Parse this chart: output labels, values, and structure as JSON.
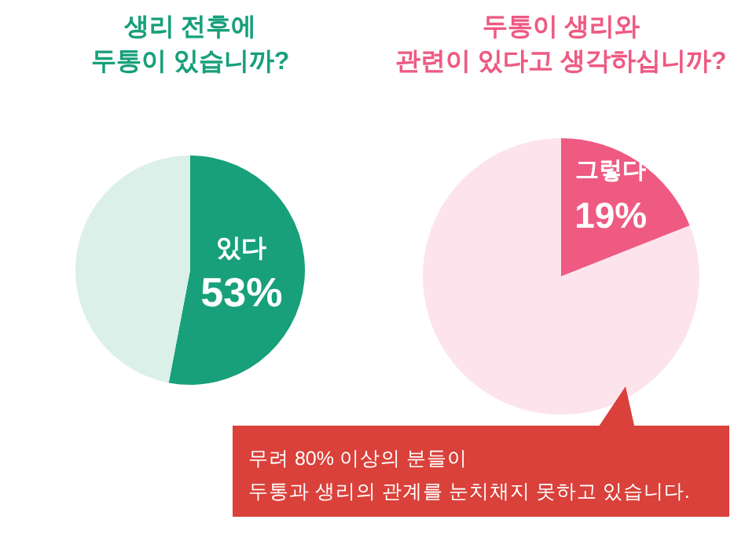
{
  "chart_data": [
    {
      "type": "pie",
      "title": "생리 전후에\n두통이 있습니까?",
      "categories": [
        "있다",
        null
      ],
      "values": [
        53,
        47
      ],
      "colors": [
        "#17a07a",
        "#dcf0ea"
      ],
      "value_labels": [
        "53%",
        null
      ]
    },
    {
      "type": "pie",
      "title": "두통이 생리와\n관련이 있다고 생각하십니까?",
      "categories": [
        "그렇다",
        null
      ],
      "values": [
        19,
        81
      ],
      "colors": [
        "#ee5a82",
        "#fde4ec"
      ],
      "value_labels": [
        "19%",
        null
      ],
      "annotations": [
        "무려 80% 이상의 분들이\n두통과 생리의 관계를 눈치채지 못하고 있습니다."
      ]
    }
  ]
}
